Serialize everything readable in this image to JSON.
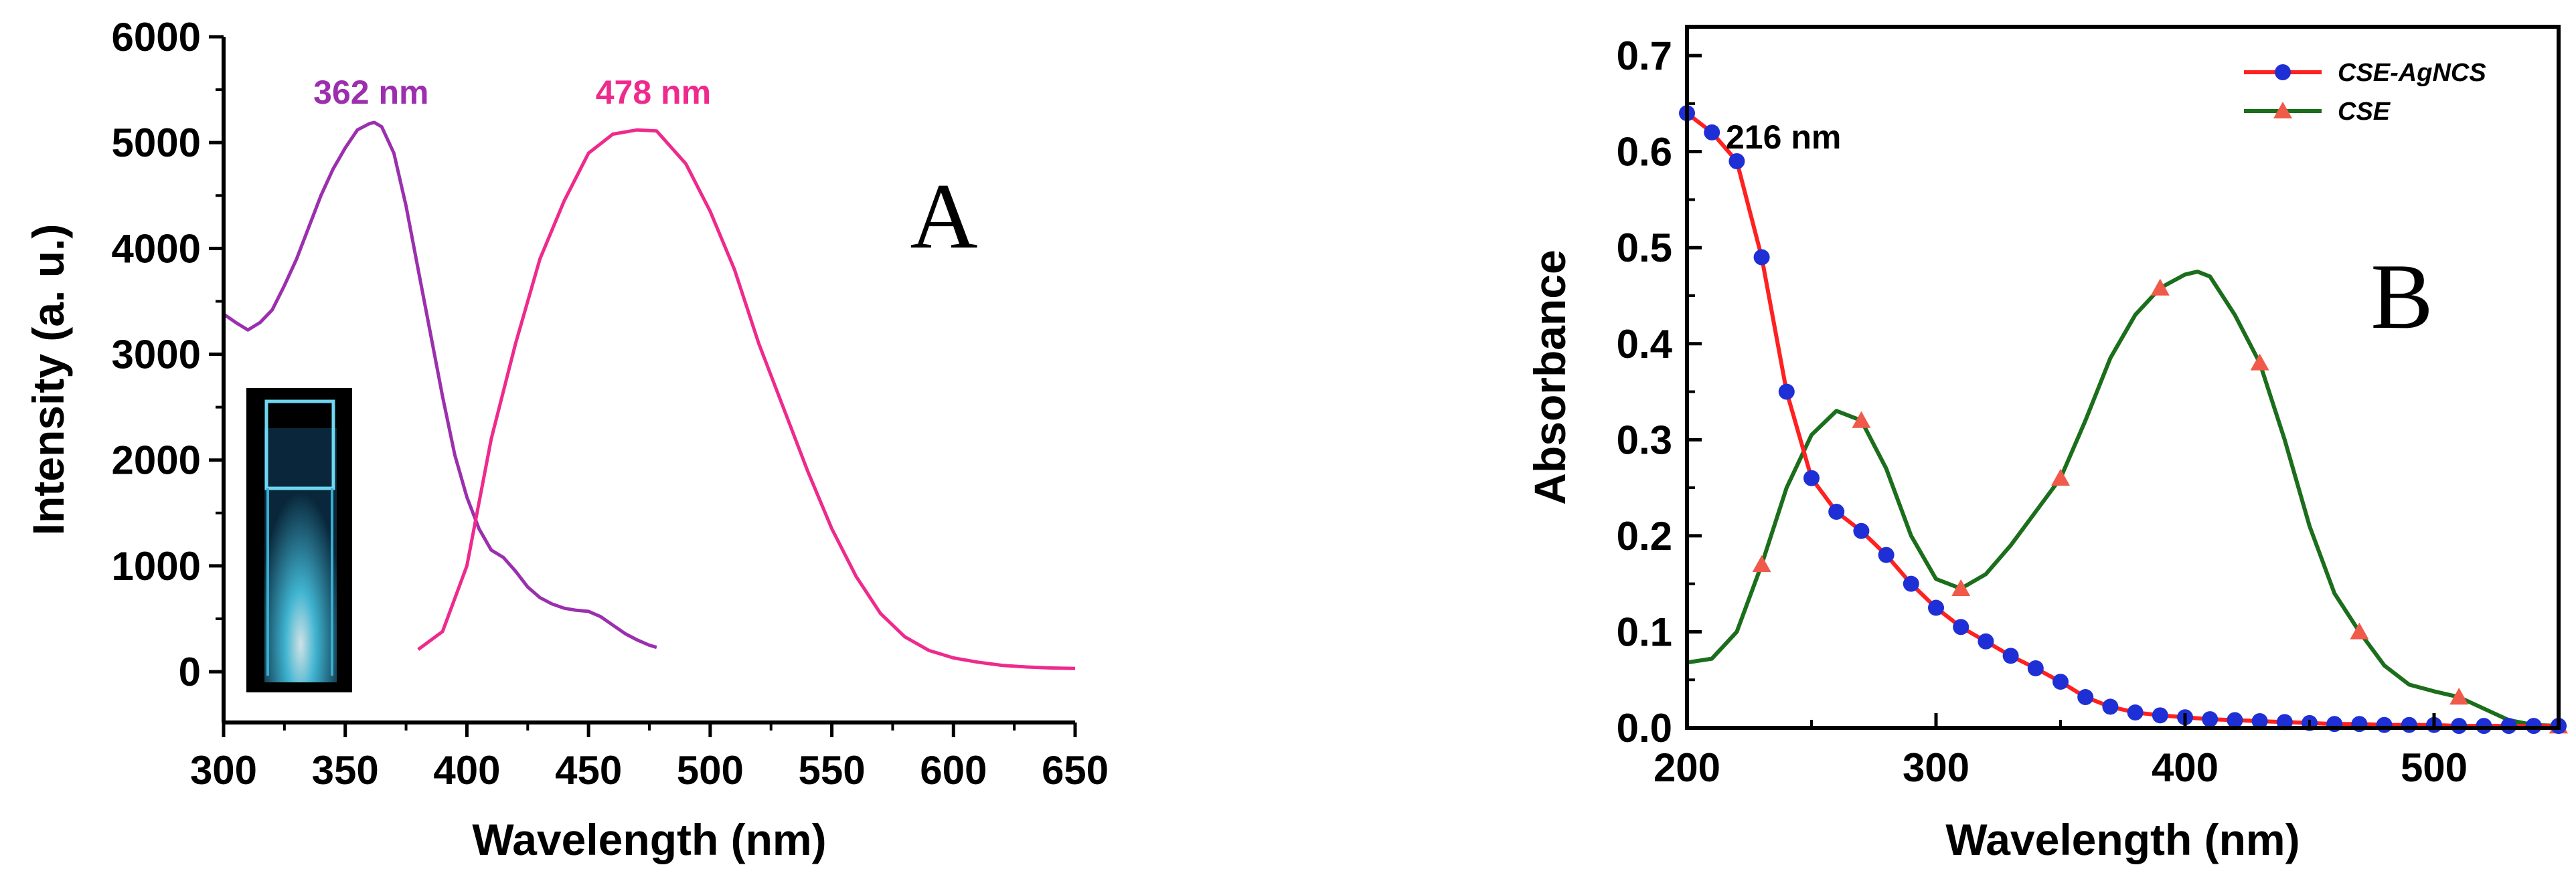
{
  "colors": {
    "excitation": "#9b2fae",
    "emission": "#ee2a8c",
    "cse_agncs_line": "#ff2020",
    "cse_agncs_marker": "#1f2fd6",
    "cse_line": "#1b6e1b",
    "cse_marker": "#f05a4a"
  },
  "chart_data": [
    {
      "type": "line",
      "panel_label": "A",
      "xlabel": "Wavelength (nm)",
      "ylabel": "Intensity (a. u.)",
      "xlim": [
        300,
        650
      ],
      "ylim": [
        -480,
        6000
      ],
      "xticks": [
        300,
        350,
        400,
        450,
        500,
        550,
        600,
        650
      ],
      "yticks": [
        0,
        1000,
        2000,
        3000,
        4000,
        5000,
        6000
      ],
      "grid": false,
      "inset_image": "cuvette-photo",
      "annotations": [
        {
          "text": "362 nm",
          "x": 362,
          "y": 5180,
          "color": "#9b2fae"
        },
        {
          "text": "478 nm",
          "x": 478,
          "y": 5110,
          "color": "#ee2a8c"
        }
      ],
      "series": [
        {
          "color": "#9b2fae",
          "x": [
            300,
            305,
            310,
            315,
            320,
            325,
            330,
            335,
            340,
            345,
            350,
            355,
            360,
            362,
            365,
            370,
            375,
            380,
            385,
            390,
            395,
            400,
            405,
            410,
            415,
            420,
            425,
            430,
            435,
            440,
            445,
            450,
            455,
            460,
            465,
            470,
            475,
            478
          ],
          "values": [
            3380,
            3300,
            3230,
            3300,
            3420,
            3650,
            3900,
            4200,
            4500,
            4750,
            4950,
            5120,
            5180,
            5190,
            5150,
            4900,
            4400,
            3800,
            3200,
            2600,
            2050,
            1650,
            1350,
            1150,
            1080,
            950,
            800,
            700,
            640,
            600,
            580,
            570,
            520,
            440,
            360,
            300,
            250,
            230
          ]
        },
        {
          "color": "#ee2a8c",
          "x": [
            380,
            390,
            400,
            410,
            420,
            430,
            440,
            450,
            460,
            470,
            478,
            490,
            500,
            510,
            520,
            530,
            540,
            550,
            560,
            570,
            580,
            590,
            600,
            610,
            620,
            630,
            640,
            650
          ],
          "values": [
            210,
            380,
            1000,
            2200,
            3100,
            3900,
            4450,
            4900,
            5080,
            5120,
            5110,
            4800,
            4350,
            3800,
            3100,
            2500,
            1900,
            1350,
            900,
            550,
            330,
            200,
            130,
            90,
            60,
            45,
            35,
            30
          ]
        }
      ]
    },
    {
      "type": "line",
      "panel_label": "B",
      "xlabel": "Wavelength (nm)",
      "ylabel": "Absorbance",
      "xlim": [
        200,
        550
      ],
      "ylim": [
        0,
        0.73
      ],
      "xticks": [
        200,
        300,
        400,
        500
      ],
      "yticks": [
        0.0,
        0.1,
        0.2,
        0.3,
        0.4,
        0.5,
        0.6,
        0.7
      ],
      "grid": false,
      "legend_position": "top-right",
      "annotations": [
        {
          "text": "216 nm",
          "x": 216,
          "y": 0.64,
          "color": "#000000"
        }
      ],
      "series": [
        {
          "name": "CSE-AgNCS",
          "color": "#ff2020",
          "marker_color": "#1f2fd6",
          "marker": "circle",
          "x": [
            200,
            210,
            220,
            230,
            240,
            250,
            260,
            270,
            280,
            290,
            300,
            310,
            320,
            330,
            340,
            350,
            360,
            370,
            380,
            390,
            400,
            410,
            420,
            430,
            440,
            450,
            460,
            470,
            480,
            490,
            500,
            510,
            520,
            530,
            540,
            550
          ],
          "values": [
            0.64,
            0.62,
            0.59,
            0.49,
            0.35,
            0.26,
            0.225,
            0.205,
            0.18,
            0.15,
            0.125,
            0.105,
            0.09,
            0.075,
            0.062,
            0.048,
            0.032,
            0.022,
            0.016,
            0.013,
            0.011,
            0.009,
            0.008,
            0.007,
            0.006,
            0.005,
            0.004,
            0.004,
            0.003,
            0.003,
            0.003,
            0.002,
            0.002,
            0.002,
            0.002,
            0.002
          ]
        },
        {
          "name": "CSE",
          "color": "#1b6e1b",
          "marker_color": "#f05a4a",
          "marker": "triangle",
          "marker_x": [
            230,
            270,
            310,
            350,
            390,
            430,
            470,
            510,
            550
          ],
          "x": [
            200,
            210,
            220,
            230,
            240,
            250,
            260,
            270,
            280,
            290,
            300,
            310,
            320,
            330,
            340,
            350,
            360,
            370,
            380,
            390,
            400,
            405,
            410,
            420,
            430,
            440,
            450,
            460,
            470,
            480,
            490,
            500,
            510,
            520,
            530,
            540,
            550
          ],
          "values": [
            0.068,
            0.072,
            0.1,
            0.17,
            0.25,
            0.305,
            0.33,
            0.32,
            0.27,
            0.2,
            0.155,
            0.145,
            0.16,
            0.19,
            0.225,
            0.26,
            0.32,
            0.385,
            0.43,
            0.458,
            0.472,
            0.475,
            0.47,
            0.43,
            0.38,
            0.3,
            0.21,
            0.14,
            0.1,
            0.065,
            0.045,
            0.038,
            0.032,
            0.02,
            0.008,
            0.003,
            0.002
          ]
        }
      ]
    }
  ]
}
